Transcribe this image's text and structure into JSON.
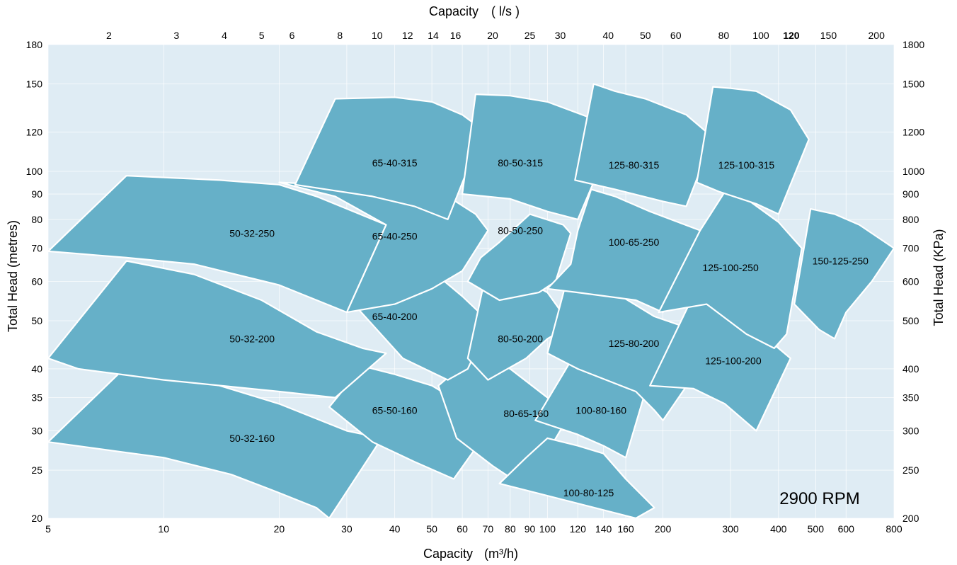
{
  "chart_data": {
    "type": "area",
    "title": "",
    "annotation": "2900 RPM",
    "x_bottom": {
      "label": "Capacity",
      "unit": "(m³/h)",
      "scale": "log",
      "range": [
        5,
        800
      ],
      "ticks": [
        "5",
        "10",
        "20",
        "30",
        "40",
        "50",
        "60",
        "70",
        "80",
        "90",
        "100",
        "120",
        "140",
        "160",
        "200",
        "300",
        "400",
        "500",
        "600",
        "800"
      ]
    },
    "x_top": {
      "label": "Capacity",
      "unit": "( l/s )",
      "scale": "log",
      "ticks": [
        {
          "label": "2",
          "bold": false
        },
        {
          "label": "3",
          "bold": false
        },
        {
          "label": "4",
          "bold": false
        },
        {
          "label": "5",
          "bold": false
        },
        {
          "label": "6",
          "bold": false
        },
        {
          "label": "8",
          "bold": false
        },
        {
          "label": "10",
          "bold": false
        },
        {
          "label": "12",
          "bold": false
        },
        {
          "label": "14",
          "bold": false
        },
        {
          "label": "16",
          "bold": false
        },
        {
          "label": "20",
          "bold": false
        },
        {
          "label": "25",
          "bold": false
        },
        {
          "label": "30",
          "bold": false
        },
        {
          "label": "40",
          "bold": false
        },
        {
          "label": "50",
          "bold": false
        },
        {
          "label": "60",
          "bold": false
        },
        {
          "label": "80",
          "bold": false
        },
        {
          "label": "100",
          "bold": false
        },
        {
          "label": "120",
          "bold": true
        },
        {
          "label": "150",
          "bold": false
        },
        {
          "label": "200",
          "bold": false
        }
      ]
    },
    "y_left": {
      "label": "Total  Head  (metres)",
      "scale": "log",
      "range": [
        20,
        180
      ],
      "ticks": [
        "20",
        "25",
        "30",
        "35",
        "40",
        "50",
        "60",
        "70",
        "80",
        "90",
        "100",
        "120",
        "150",
        "180"
      ]
    },
    "y_right": {
      "label": "Total  Head  (KPa)",
      "scale": "log",
      "ticks": [
        "200",
        "250",
        "300",
        "350",
        "400",
        "500",
        "600",
        "700",
        "800",
        "900",
        "1000",
        "1200",
        "1500",
        "1800"
      ]
    },
    "grid": true,
    "region_color": "#66b0c8",
    "background_color": "#dfecf4",
    "regions": [
      {
        "name": "50-32-160",
        "label_pos": [
          17,
          29
        ],
        "outline": [
          [
            5,
            28.5
          ],
          [
            8,
            40.5
          ],
          [
            14,
            37
          ],
          [
            20,
            34
          ],
          [
            30,
            30
          ],
          [
            37,
            29
          ],
          [
            27,
            20
          ],
          [
            25,
            21
          ],
          [
            20,
            22.5
          ],
          [
            15,
            24.5
          ],
          [
            10,
            26.5
          ],
          [
            7,
            27.5
          ],
          [
            5,
            28.5
          ]
        ]
      },
      {
        "name": "65-50-160",
        "label_pos": [
          40,
          33
        ],
        "outline": [
          [
            27,
            33.5
          ],
          [
            33,
            40.5
          ],
          [
            40,
            39
          ],
          [
            50,
            37
          ],
          [
            60,
            34
          ],
          [
            70,
            30
          ],
          [
            57,
            24
          ],
          [
            45,
            26
          ],
          [
            35,
            28.5
          ],
          [
            27,
            33.5
          ]
        ]
      },
      {
        "name": "80-65-160",
        "label_pos": [
          88,
          32.5
        ],
        "outline": [
          [
            52,
            37
          ],
          [
            64,
            42.5
          ],
          [
            80,
            40
          ],
          [
            100,
            35
          ],
          [
            112,
            31.5
          ],
          [
            88,
            23
          ],
          [
            72,
            25.5
          ],
          [
            58,
            29
          ],
          [
            52,
            37
          ]
        ]
      },
      {
        "name": "100-80-160",
        "label_pos": [
          138,
          33
        ],
        "outline": [
          [
            93,
            31.5
          ],
          [
            114,
            41
          ],
          [
            140,
            39
          ],
          [
            160,
            37.5
          ],
          [
            180,
            36
          ],
          [
            160,
            26.5
          ],
          [
            140,
            28
          ],
          [
            120,
            29.5
          ],
          [
            93,
            31.5
          ]
        ]
      },
      {
        "name": "100-80-125",
        "label_pos": [
          128,
          22.5
        ],
        "outline": [
          [
            75,
            23.5
          ],
          [
            88,
            26.5
          ],
          [
            100,
            29
          ],
          [
            120,
            28
          ],
          [
            140,
            27
          ],
          [
            160,
            24
          ],
          [
            190,
            21
          ],
          [
            170,
            20
          ],
          [
            75,
            23.5
          ]
        ]
      },
      {
        "name": "50-32-200",
        "label_pos": [
          17,
          46
        ],
        "outline": [
          [
            4.5,
            42
          ],
          [
            8,
            66
          ],
          [
            12,
            62
          ],
          [
            18,
            55
          ],
          [
            25,
            47.5
          ],
          [
            33,
            44
          ],
          [
            38,
            43
          ],
          [
            28,
            35
          ],
          [
            20,
            36
          ],
          [
            10,
            38
          ],
          [
            6,
            40
          ],
          [
            4.5,
            42
          ]
        ]
      },
      {
        "name": "65-40-200",
        "label_pos": [
          40,
          51
        ],
        "outline": [
          [
            32,
            53
          ],
          [
            37,
            65
          ],
          [
            50,
            63
          ],
          [
            60,
            56
          ],
          [
            70,
            50
          ],
          [
            67,
            45.5
          ],
          [
            62,
            40
          ],
          [
            55,
            38
          ],
          [
            42,
            42
          ],
          [
            32,
            53
          ]
        ]
      },
      {
        "name": "80-50-200",
        "label_pos": [
          85,
          46
        ],
        "outline": [
          [
            62,
            42
          ],
          [
            70,
            65
          ],
          [
            85,
            61
          ],
          [
            100,
            57
          ],
          [
            115,
            49
          ],
          [
            110,
            48
          ],
          [
            100,
            46
          ],
          [
            88,
            42
          ],
          [
            70,
            38
          ],
          [
            62,
            42
          ]
        ]
      },
      {
        "name": "125-80-200",
        "label_pos": [
          168,
          45
        ],
        "outline": [
          [
            100,
            43
          ],
          [
            114,
            63
          ],
          [
            150,
            57
          ],
          [
            190,
            51
          ],
          [
            280,
            46
          ],
          [
            200,
            31.5
          ],
          [
            190,
            33
          ],
          [
            170,
            36
          ],
          [
            120,
            40
          ],
          [
            100,
            43
          ]
        ]
      },
      {
        "name": "125-100-200",
        "label_pos": [
          305,
          41.5
        ],
        "outline": [
          [
            185,
            37
          ],
          [
            250,
            60
          ],
          [
            300,
            55
          ],
          [
            350,
            48
          ],
          [
            430,
            42
          ],
          [
            350,
            30
          ],
          [
            290,
            34
          ],
          [
            240,
            36.5
          ],
          [
            185,
            37
          ]
        ]
      },
      {
        "name": "50-32-250",
        "label_pos": [
          17,
          75
        ],
        "outline": [
          [
            5,
            69
          ],
          [
            8,
            98
          ],
          [
            14,
            96
          ],
          [
            20,
            94
          ],
          [
            25,
            89
          ],
          [
            38,
            78
          ],
          [
            30,
            52
          ],
          [
            20,
            59
          ],
          [
            12,
            65
          ],
          [
            8,
            67
          ],
          [
            5,
            69
          ]
        ]
      },
      {
        "name": "65-40-250",
        "label_pos": [
          40,
          74
        ],
        "outline": [
          [
            30,
            52
          ],
          [
            38,
            78
          ],
          [
            28,
            89
          ],
          [
            20,
            95
          ],
          [
            35,
            93
          ],
          [
            55,
            89
          ],
          [
            65,
            82
          ],
          [
            70,
            76
          ],
          [
            60,
            63
          ],
          [
            50,
            58
          ],
          [
            40,
            54
          ],
          [
            30,
            52
          ]
        ]
      },
      {
        "name": "80-50-250",
        "label_pos": [
          85,
          76
        ],
        "outline": [
          [
            62,
            60
          ],
          [
            67,
            67
          ],
          [
            75,
            72
          ],
          [
            90,
            82
          ],
          [
            110,
            78
          ],
          [
            115,
            75
          ],
          [
            105,
            60
          ],
          [
            95,
            57
          ],
          [
            75,
            55
          ],
          [
            62,
            60
          ]
        ]
      },
      {
        "name": "100-65-250",
        "label_pos": [
          168,
          72
        ],
        "outline": [
          [
            100,
            58
          ],
          [
            115,
            65
          ],
          [
            120,
            76
          ],
          [
            130,
            92
          ],
          [
            150,
            89
          ],
          [
            185,
            83
          ],
          [
            250,
            76
          ],
          [
            200,
            52
          ],
          [
            170,
            55
          ],
          [
            120,
            57
          ],
          [
            100,
            58
          ]
        ]
      },
      {
        "name": "125-100-250",
        "label_pos": [
          300,
          64
        ],
        "outline": [
          [
            195,
            52
          ],
          [
            250,
            76
          ],
          [
            290,
            91
          ],
          [
            330,
            88
          ],
          [
            400,
            79
          ],
          [
            460,
            70
          ],
          [
            420,
            47
          ],
          [
            390,
            44
          ],
          [
            330,
            47
          ],
          [
            260,
            54
          ],
          [
            195,
            52
          ]
        ]
      },
      {
        "name": "150-125-250",
        "label_pos": [
          580,
          66
        ],
        "outline": [
          [
            440,
            54
          ],
          [
            485,
            84
          ],
          [
            560,
            82
          ],
          [
            650,
            78
          ],
          [
            800,
            70
          ],
          [
            700,
            60
          ],
          [
            600,
            52
          ],
          [
            560,
            46
          ],
          [
            510,
            48
          ],
          [
            440,
            54
          ]
        ]
      },
      {
        "name": "65-40-315",
        "label_pos": [
          40,
          104
        ],
        "outline": [
          [
            22,
            94
          ],
          [
            28,
            140
          ],
          [
            40,
            141
          ],
          [
            50,
            138
          ],
          [
            60,
            130
          ],
          [
            68,
            121
          ],
          [
            55,
            80
          ],
          [
            45,
            85
          ],
          [
            35,
            89
          ],
          [
            22,
            94
          ]
        ]
      },
      {
        "name": "80-50-315",
        "label_pos": [
          85,
          104
        ],
        "outline": [
          [
            60,
            90
          ],
          [
            65,
            143
          ],
          [
            80,
            142
          ],
          [
            100,
            138
          ],
          [
            130,
            128
          ],
          [
            150,
            120
          ],
          [
            120,
            80
          ],
          [
            100,
            83
          ],
          [
            80,
            88
          ],
          [
            60,
            90
          ]
        ]
      },
      {
        "name": "125-80-315",
        "label_pos": [
          168,
          103
        ],
        "outline": [
          [
            118,
            96
          ],
          [
            132,
            150
          ],
          [
            150,
            145
          ],
          [
            180,
            140
          ],
          [
            230,
            130
          ],
          [
            270,
            117
          ],
          [
            230,
            85
          ],
          [
            200,
            87
          ],
          [
            150,
            92
          ],
          [
            118,
            96
          ]
        ]
      },
      {
        "name": "125-100-315",
        "label_pos": [
          330,
          103
        ],
        "outline": [
          [
            245,
            95
          ],
          [
            270,
            148
          ],
          [
            300,
            147
          ],
          [
            350,
            145
          ],
          [
            430,
            133
          ],
          [
            480,
            116
          ],
          [
            400,
            82
          ],
          [
            350,
            86
          ],
          [
            280,
            91
          ],
          [
            245,
            95
          ]
        ]
      }
    ]
  }
}
